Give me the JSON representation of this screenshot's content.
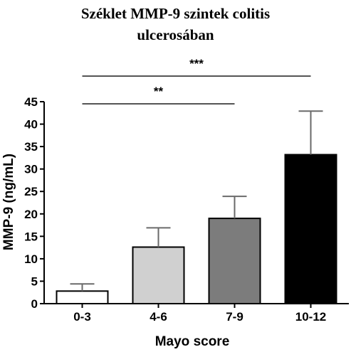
{
  "chart_data": {
    "type": "bar",
    "title_lines": [
      "Széklet MMP-9 szintek colitis",
      "ulcerosában"
    ],
    "xlabel": "Mayo score",
    "ylabel": "MMP-9 (ng/mL)",
    "categories": [
      "0-3",
      "4-6",
      "7-9",
      "10-12"
    ],
    "values": [
      2.8,
      12.6,
      19.0,
      33.2
    ],
    "errors": [
      1.6,
      4.3,
      4.9,
      9.7
    ],
    "bar_colors": [
      "#ffffff",
      "#d0d0d0",
      "#7c7c7c",
      "#000000"
    ],
    "ylim": [
      0,
      45
    ],
    "yticks": [
      0,
      5,
      10,
      15,
      20,
      25,
      30,
      35,
      40,
      45
    ],
    "grid": false,
    "significance": [
      {
        "from": "0-3",
        "to": "7-9",
        "label": "**"
      },
      {
        "from": "0-3",
        "to": "10-12",
        "label": "***"
      }
    ]
  }
}
